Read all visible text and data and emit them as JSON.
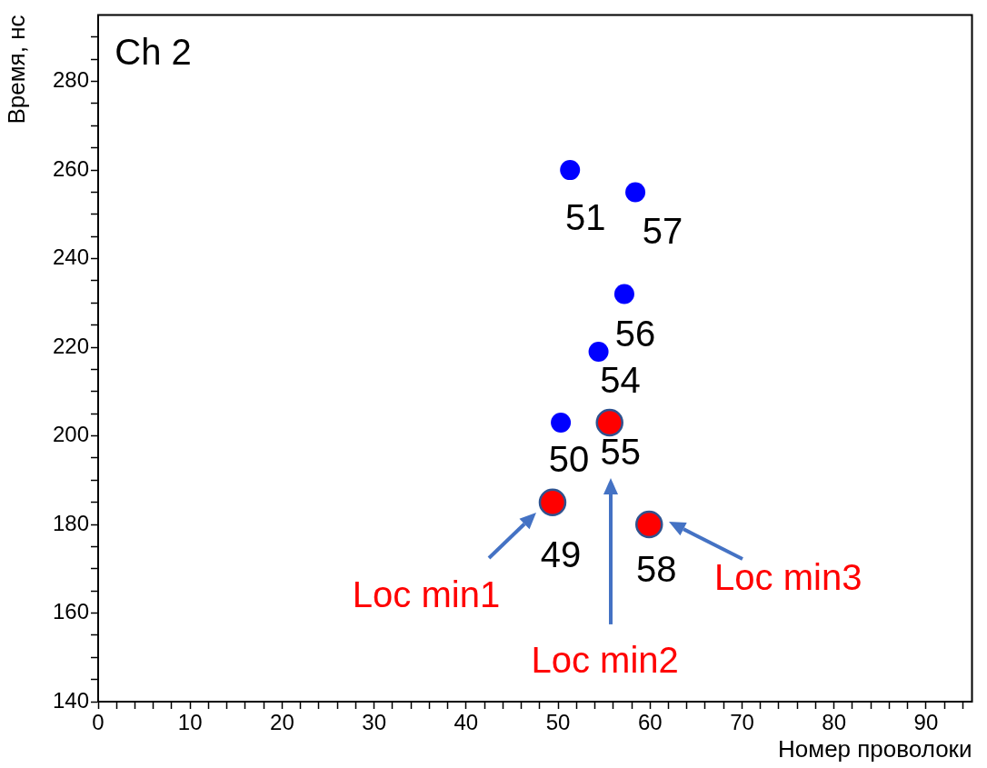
{
  "chart_data": {
    "type": "scatter",
    "xlabel": "Номер проволоки",
    "ylabel": "Время, нс",
    "xlim": [
      0,
      95
    ],
    "ylim": [
      140,
      295
    ],
    "xticks": [
      0,
      {
        "value": 2,
        "label": null
      },
      {
        "value": 4,
        "label": null
      },
      {
        "value": 6,
        "label": null
      },
      {
        "value": 8,
        "label": null
      },
      10,
      {
        "value": 12,
        "label": null
      },
      {
        "value": 14,
        "label": null
      },
      {
        "value": 16,
        "label": null
      },
      {
        "value": 18,
        "label": null
      },
      20,
      {
        "value": 22,
        "label": null
      },
      {
        "value": 24,
        "label": null
      },
      {
        "value": 26,
        "label": null
      },
      {
        "value": 28,
        "label": null
      },
      30,
      {
        "value": 32,
        "label": null
      },
      {
        "value": 34,
        "label": null
      },
      {
        "value": 36,
        "label": null
      },
      {
        "value": 38,
        "label": null
      },
      40,
      {
        "value": 42,
        "label": null
      },
      {
        "value": 44,
        "label": null
      },
      {
        "value": 46,
        "label": null
      },
      {
        "value": 48,
        "label": null
      },
      50,
      {
        "value": 52,
        "label": null
      },
      {
        "value": 54,
        "label": null
      },
      {
        "value": 56,
        "label": null
      },
      {
        "value": 58,
        "label": null
      },
      60,
      {
        "value": 62,
        "label": null
      },
      {
        "value": 64,
        "label": null
      },
      {
        "value": 66,
        "label": null
      },
      {
        "value": 68,
        "label": null
      },
      70,
      {
        "value": 72,
        "label": null
      },
      {
        "value": 74,
        "label": null
      },
      {
        "value": 76,
        "label": null
      },
      {
        "value": 78,
        "label": null
      },
      80,
      {
        "value": 82,
        "label": null
      },
      {
        "value": 84,
        "label": null
      },
      {
        "value": 86,
        "label": null
      },
      {
        "value": 88,
        "label": null
      },
      90,
      {
        "value": 92,
        "label": null
      },
      {
        "value": 94,
        "label": null
      }
    ],
    "yticks": [
      140,
      {
        "value": 145,
        "label": null
      },
      {
        "value": 150,
        "label": null
      },
      {
        "value": 155,
        "label": null
      },
      160,
      {
        "value": 165,
        "label": null
      },
      {
        "value": 170,
        "label": null
      },
      {
        "value": 175,
        "label": null
      },
      180,
      {
        "value": 185,
        "label": null
      },
      {
        "value": 190,
        "label": null
      },
      {
        "value": 195,
        "label": null
      },
      200,
      {
        "value": 205,
        "label": null
      },
      {
        "value": 210,
        "label": null
      },
      {
        "value": 215,
        "label": null
      },
      220,
      {
        "value": 225,
        "label": null
      },
      {
        "value": 230,
        "label": null
      },
      {
        "value": 235,
        "label": null
      },
      240,
      {
        "value": 245,
        "label": null
      },
      {
        "value": 250,
        "label": null
      },
      {
        "value": 255,
        "label": null
      },
      260,
      {
        "value": 265,
        "label": null
      },
      {
        "value": 270,
        "label": null
      },
      {
        "value": 275,
        "label": null
      },
      280,
      {
        "value": 285,
        "label": null
      },
      {
        "value": 290,
        "label": null
      }
    ],
    "grid": false,
    "legend": false,
    "marker": "circle",
    "series": [
      {
        "color": "#0000ff",
        "x": [
          51.3,
          58.4,
          57.2,
          54.4,
          50.3
        ],
        "values": [
          260,
          255,
          232,
          219,
          203
        ]
      },
      {
        "color": "#ff0000",
        "x": [
          55.6,
          49.4,
          59.9
        ],
        "values": [
          203,
          185,
          180
        ]
      }
    ],
    "annotations": [
      "Ch 2",
      {
        "text": "51",
        "x": 51.3,
        "y": 260
      },
      {
        "text": "57",
        "x": 58.4,
        "y": 255
      },
      {
        "text": "56",
        "x": 57.2,
        "y": 232
      },
      {
        "text": "54",
        "x": 54.4,
        "y": 219
      },
      {
        "text": "50",
        "x": 50.3,
        "y": 203
      },
      {
        "text": "55",
        "x": 55.6,
        "y": 203
      },
      {
        "text": "49",
        "x": 49.4,
        "y": 185
      },
      {
        "text": "58",
        "x": 59.9,
        "y": 180
      },
      {
        "text": "Loc min1",
        "x": 49.4,
        "y": 185
      },
      "Loc min2",
      {
        "text": "Loc min3",
        "x": 59.9,
        "y": 180
      }
    ]
  }
}
